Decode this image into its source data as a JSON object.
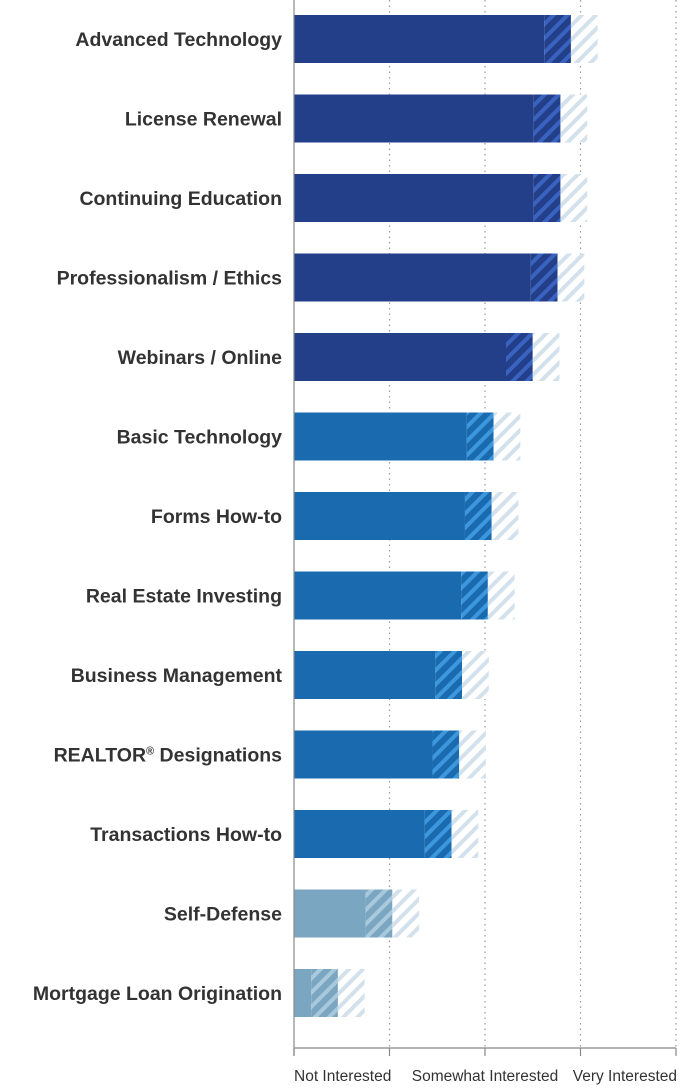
{
  "chart_data": {
    "type": "bar",
    "orientation": "horizontal",
    "title": "",
    "xlabel": "",
    "ylabel": "",
    "xlim": [
      0,
      4
    ],
    "grid": true,
    "legend": "none",
    "x_tick_positions": [
      0,
      1,
      2,
      3,
      4
    ],
    "x_tick_labels": [
      "Not Interested",
      "",
      "Somewhat Interested",
      "",
      "Very Interested"
    ],
    "colors": {
      "dark": "#233f89",
      "medium": "#1a6aaf",
      "light": "#7aa6c2",
      "stripe_faint": "#d3e1ec",
      "grid": "#999999",
      "axis": "#888888",
      "text": "#333333"
    },
    "categories": [
      "Advanced Technology",
      "License Renewal",
      "Continuing Education",
      "Professionalism / Ethics",
      "Webinars / Online",
      "Basic Technology",
      "Forms How-to",
      "Real Estate Investing",
      "Business Management",
      "REALTOR® Designations",
      "Transactions How-to",
      "Self-Defense",
      "Mortgage Loan Origination"
    ],
    "values": [
      2.9,
      2.79,
      2.79,
      2.76,
      2.5,
      2.09,
      2.07,
      2.03,
      1.76,
      1.73,
      1.65,
      1.03,
      0.46
    ],
    "uncertainty_band": 0.28,
    "color_group": [
      "dark",
      "dark",
      "dark",
      "dark",
      "dark",
      "medium",
      "medium",
      "medium",
      "medium",
      "medium",
      "medium",
      "light",
      "light"
    ]
  }
}
